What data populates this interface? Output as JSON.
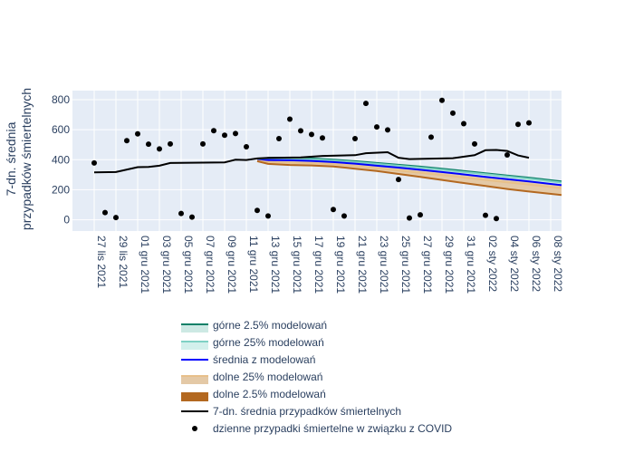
{
  "chart_data": {
    "type": "line",
    "ylabel_lines": [
      "7-dn. średnia",
      "przypadków śmiertelnych"
    ],
    "ylim": [
      -75,
      860
    ],
    "yticks": [
      0,
      200,
      400,
      600,
      800
    ],
    "xlim": [
      "2021-11-25",
      "2022-01-09"
    ],
    "xticks": [
      {
        "date": "2021-11-27",
        "label": "27 lis 2021"
      },
      {
        "date": "2021-11-29",
        "label": "29 lis 2021"
      },
      {
        "date": "2021-12-01",
        "label": "01 gru 2021"
      },
      {
        "date": "2021-12-03",
        "label": "03 gru 2021"
      },
      {
        "date": "2021-12-05",
        "label": "05 gru 2021"
      },
      {
        "date": "2021-12-07",
        "label": "07 gru 2021"
      },
      {
        "date": "2021-12-09",
        "label": "09 gru 2021"
      },
      {
        "date": "2021-12-11",
        "label": "11 gru 2021"
      },
      {
        "date": "2021-12-13",
        "label": "13 gru 2021"
      },
      {
        "date": "2021-12-15",
        "label": "15 gru 2021"
      },
      {
        "date": "2021-12-17",
        "label": "17 gru 2021"
      },
      {
        "date": "2021-12-19",
        "label": "19 gru 2021"
      },
      {
        "date": "2021-12-21",
        "label": "21 gru 2021"
      },
      {
        "date": "2021-12-23",
        "label": "23 gru 2021"
      },
      {
        "date": "2021-12-25",
        "label": "25 gru 2021"
      },
      {
        "date": "2021-12-27",
        "label": "27 gru 2021"
      },
      {
        "date": "2021-12-29",
        "label": "29 gru 2021"
      },
      {
        "date": "2021-12-31",
        "label": "31 gru 2021"
      },
      {
        "date": "2022-01-02",
        "label": "02 sty 2022"
      },
      {
        "date": "2022-01-04",
        "label": "04 sty 2022"
      },
      {
        "date": "2022-01-06",
        "label": "06 sty 2022"
      },
      {
        "date": "2022-01-08",
        "label": "08 sty 2022"
      }
    ],
    "grid": true,
    "legend_position": "bottom",
    "colors": {
      "plot_bg": "#e5ecf6",
      "grid": "#ffffff",
      "upper_2_5": "#0f8068",
      "upper_2_5_fill": "#cde9e4",
      "upper_25": "#7fd1c4",
      "upper_25_fill": "#d2f0ec",
      "mean": "#0000ff",
      "lower_25": "#e7c08a",
      "lower_25_fill": "#e4c9a6",
      "lower_2_5": "#b36820",
      "avg7": "#000000",
      "daily": "#000000"
    },
    "model_dates": [
      "2021-12-12",
      "2021-12-13",
      "2021-12-15",
      "2021-12-17",
      "2021-12-19",
      "2021-12-21",
      "2021-12-23",
      "2021-12-25",
      "2021-12-27",
      "2021-12-29",
      "2021-12-31",
      "2022-01-02",
      "2022-01-04",
      "2022-01-06",
      "2022-01-09"
    ],
    "series": [
      {
        "name": "górne 2.5% modelowań",
        "values": [
          400,
          412,
          412,
          408,
          400,
          390,
          378,
          366,
          354,
          340,
          325,
          310,
          295,
          280,
          255
        ]
      },
      {
        "name": "górne 25% modelowań",
        "values": [
          398,
          406,
          406,
          402,
          394,
          384,
          372,
          360,
          347,
          333,
          318,
          303,
          288,
          273,
          248
        ]
      },
      {
        "name": "średnia z modelowań",
        "values": [
          395,
          398,
          396,
          392,
          384,
          374,
          360,
          347,
          333,
          318,
          302,
          286,
          270,
          255,
          230
        ]
      },
      {
        "name": "dolne 25% modelowań",
        "values": [
          393,
          385,
          380,
          377,
          370,
          358,
          343,
          328,
          313,
          297,
          281,
          265,
          249,
          234,
          210
        ]
      },
      {
        "name": "dolne 2.5% modelowań",
        "values": [
          390,
          372,
          365,
          362,
          355,
          340,
          325,
          305,
          285,
          265,
          245,
          225,
          205,
          188,
          165
        ]
      }
    ],
    "avg7": {
      "name": "7-dn. średnia przypadków śmiertelnych",
      "points": [
        [
          "2021-11-27",
          315
        ],
        [
          "2021-11-29",
          318
        ],
        [
          "2021-12-01",
          350
        ],
        [
          "2021-12-02",
          352
        ],
        [
          "2021-12-03",
          360
        ],
        [
          "2021-12-04",
          378
        ],
        [
          "2021-12-09",
          382
        ],
        [
          "2021-12-10",
          400
        ],
        [
          "2021-12-11",
          398
        ],
        [
          "2021-12-12",
          408
        ],
        [
          "2021-12-13",
          412
        ],
        [
          "2021-12-16",
          415
        ],
        [
          "2021-12-18",
          425
        ],
        [
          "2021-12-21",
          430
        ],
        [
          "2021-12-22",
          443
        ],
        [
          "2021-12-24",
          450
        ],
        [
          "2021-12-25",
          413
        ],
        [
          "2021-12-26",
          404
        ],
        [
          "2021-12-30",
          410
        ],
        [
          "2022-01-01",
          430
        ],
        [
          "2022-01-02",
          463
        ],
        [
          "2022-01-03",
          465
        ],
        [
          "2022-01-04",
          458
        ],
        [
          "2022-01-05",
          428
        ],
        [
          "2022-01-06",
          413
        ]
      ]
    },
    "daily": {
      "name": "dzienne przypadki śmiertelne w związku z COVID",
      "points": [
        [
          "2021-11-27",
          378
        ],
        [
          "2021-11-28",
          48
        ],
        [
          "2021-11-29",
          15
        ],
        [
          "2021-11-30",
          527
        ],
        [
          "2021-12-01",
          572
        ],
        [
          "2021-12-02",
          503
        ],
        [
          "2021-12-03",
          472
        ],
        [
          "2021-12-04",
          505
        ],
        [
          "2021-12-05",
          42
        ],
        [
          "2021-12-06",
          18
        ],
        [
          "2021-12-07",
          505
        ],
        [
          "2021-12-08",
          593
        ],
        [
          "2021-12-09",
          563
        ],
        [
          "2021-12-10",
          574
        ],
        [
          "2021-12-11",
          486
        ],
        [
          "2021-12-12",
          62
        ],
        [
          "2021-12-13",
          25
        ],
        [
          "2021-12-14",
          540
        ],
        [
          "2021-12-15",
          670
        ],
        [
          "2021-12-16",
          592
        ],
        [
          "2021-12-17",
          568
        ],
        [
          "2021-12-18",
          545
        ],
        [
          "2021-12-19",
          68
        ],
        [
          "2021-12-20",
          25
        ],
        [
          "2021-12-21",
          540
        ],
        [
          "2021-12-22",
          775
        ],
        [
          "2021-12-23",
          618
        ],
        [
          "2021-12-24",
          598
        ],
        [
          "2021-12-25",
          268
        ],
        [
          "2021-12-26",
          12
        ],
        [
          "2021-12-27",
          33
        ],
        [
          "2021-12-28",
          550
        ],
        [
          "2021-12-29",
          795
        ],
        [
          "2021-12-30",
          710
        ],
        [
          "2021-12-31",
          640
        ],
        [
          "2022-01-01",
          505
        ],
        [
          "2022-01-02",
          30
        ],
        [
          "2022-01-03",
          8
        ],
        [
          "2022-01-04",
          432
        ],
        [
          "2022-01-05",
          635
        ],
        [
          "2022-01-06",
          645
        ]
      ]
    },
    "legend": [
      {
        "key": "upper_2_5",
        "label": "górne 2.5% modelowań",
        "kind": "band"
      },
      {
        "key": "upper_25",
        "label": "górne 25% modelowań",
        "kind": "band"
      },
      {
        "key": "mean",
        "label": "średnia z modelowań",
        "kind": "line"
      },
      {
        "key": "lower_25",
        "label": "dolne 25% modelowań",
        "kind": "band"
      },
      {
        "key": "lower_2_5",
        "label": "dolne 2.5% modelowań",
        "kind": "band"
      },
      {
        "key": "avg7",
        "label": "7-dn. średnia przypadków śmiertelnych",
        "kind": "line"
      },
      {
        "key": "daily",
        "label": "dzienne przypadki śmiertelne w związku z COVID",
        "kind": "marker"
      }
    ]
  }
}
